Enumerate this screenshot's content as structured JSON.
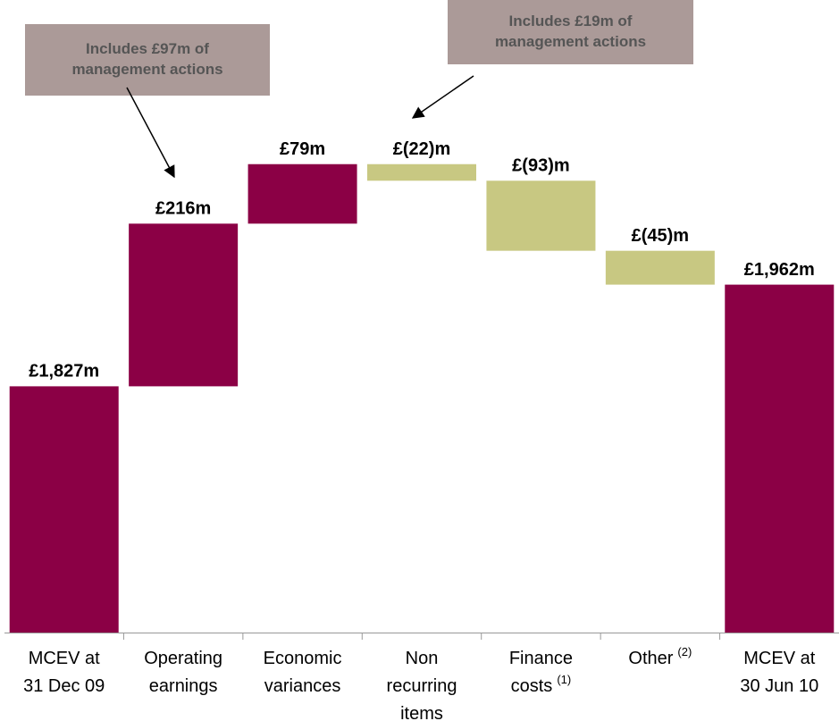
{
  "chart_data": {
    "type": "waterfall",
    "categories": [
      [
        "MCEV at",
        "31 Dec 09"
      ],
      [
        "Operating",
        "earnings"
      ],
      [
        "Economic",
        "variances"
      ],
      [
        "Non",
        "recurring",
        "items"
      ],
      [
        "Finance",
        "costs"
      ],
      [
        "Other"
      ],
      [
        "MCEV at",
        "30 Jun 10"
      ]
    ],
    "category_notes": [
      null,
      null,
      null,
      null,
      "(1)",
      "(2)",
      null
    ],
    "measure": [
      "total",
      "relative",
      "relative",
      "relative",
      "relative",
      "relative",
      "total"
    ],
    "values": [
      1827,
      216,
      79,
      -22,
      -93,
      -45,
      1962
    ],
    "value_labels": [
      "£1,827m",
      "£216m",
      "£79m",
      "£(22)m",
      "£(93)m",
      "£(45)m",
      "£1,962m"
    ],
    "total_color": "#8b0045",
    "increase_color": "#8b0045",
    "decrease_color": "#c8c882",
    "ylim": [
      1500,
      2340
    ],
    "annotations": [
      {
        "text": [
          "Includes £97m of",
          "management actions"
        ],
        "category": 1
      },
      {
        "text": [
          "Includes £19m of",
          "management actions"
        ],
        "category": 3
      }
    ]
  }
}
